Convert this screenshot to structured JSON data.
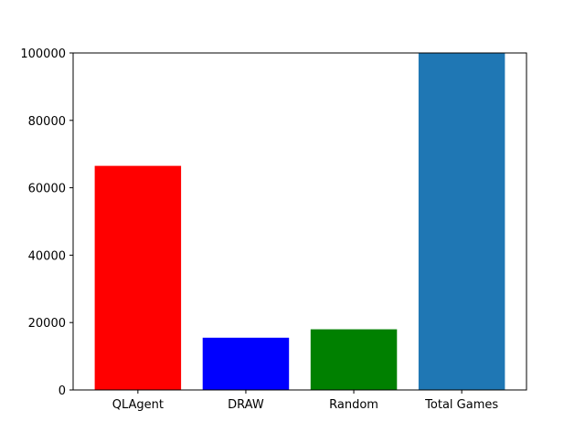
{
  "chart_data": {
    "type": "bar",
    "title": "",
    "xlabel": "",
    "ylabel": "",
    "categories": [
      "QLAgent",
      "DRAW",
      "Random",
      "Total Games"
    ],
    "values": [
      66500,
      15500,
      18000,
      100000
    ],
    "colors": [
      "#ff0000",
      "#0000ff",
      "#008000",
      "#1f77b4"
    ],
    "ylim": [
      0,
      100000
    ],
    "yticks": [
      0,
      20000,
      40000,
      60000,
      80000,
      100000
    ],
    "ytick_labels": [
      "0",
      "20000",
      "40000",
      "60000",
      "80000",
      "100000"
    ],
    "grid": false,
    "legend": "none"
  }
}
